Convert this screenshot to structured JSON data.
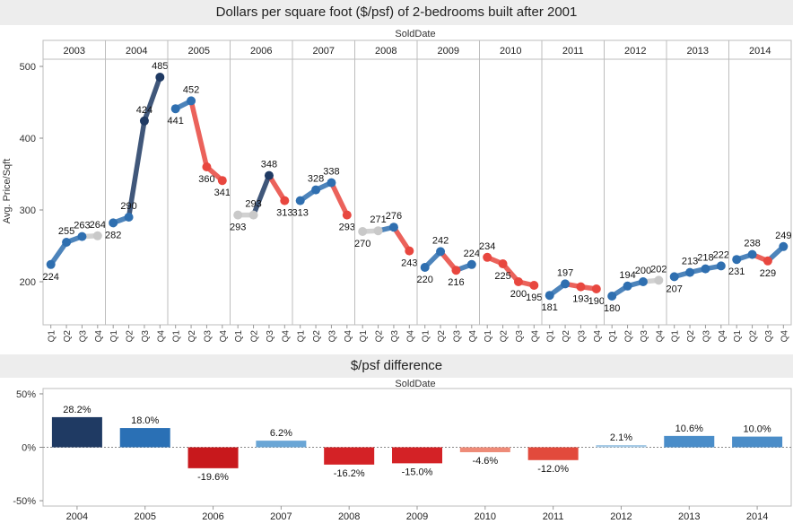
{
  "chart_data": [
    {
      "type": "line",
      "title": "Dollars per square foot ($/psf) of 2-bedrooms built after 2001",
      "column_header": "SoldDate",
      "ylabel": "Avg. Price/Sqft",
      "ylim": [
        140,
        510
      ],
      "yticks": [
        200,
        300,
        400,
        500
      ],
      "years": [
        "2003",
        "2004",
        "2005",
        "2006",
        "2007",
        "2008",
        "2009",
        "2010",
        "2011",
        "2012",
        "2013",
        "2014"
      ],
      "quarters": [
        "Q1",
        "Q2",
        "Q3",
        "Q4"
      ],
      "series": [
        {
          "year": "2003",
          "values": [
            224,
            255,
            263,
            264
          ]
        },
        {
          "year": "2004",
          "values": [
            282,
            290,
            424,
            485
          ]
        },
        {
          "year": "2005",
          "values": [
            441,
            452,
            360,
            341
          ]
        },
        {
          "year": "2006",
          "values": [
            293,
            293,
            348,
            313
          ]
        },
        {
          "year": "2007",
          "values": [
            313,
            328,
            338,
            293
          ]
        },
        {
          "year": "2008",
          "values": [
            270,
            271,
            276,
            243
          ]
        },
        {
          "year": "2009",
          "values": [
            220,
            242,
            216,
            224
          ]
        },
        {
          "year": "2010",
          "values": [
            234,
            225,
            200,
            195
          ]
        },
        {
          "year": "2011",
          "values": [
            181,
            197,
            193,
            190
          ]
        },
        {
          "year": "2012",
          "values": [
            180,
            194,
            200,
            202
          ]
        },
        {
          "year": "2013",
          "values": [
            207,
            213,
            218,
            222
          ]
        },
        {
          "year": "2014",
          "values": [
            231,
            238,
            229,
            249
          ]
        }
      ],
      "colors": {
        "increase": "#2f6fb0",
        "decrease": "#e8473f",
        "neutral": "#c9c9c9",
        "dark": "#1f3a63"
      }
    },
    {
      "type": "bar",
      "title": "$/psf difference",
      "column_header": "SoldDate",
      "categories": [
        "2004",
        "2005",
        "2006",
        "2007",
        "2008",
        "2009",
        "2010",
        "2011",
        "2012",
        "2013",
        "2014"
      ],
      "values": [
        28.2,
        18.0,
        -19.6,
        6.2,
        -16.2,
        -15.0,
        -4.6,
        -12.0,
        2.1,
        10.6,
        10.0
      ],
      "value_labels": [
        "28.2%",
        "18.0%",
        "-19.6%",
        "6.2%",
        "-16.2%",
        "-15.0%",
        "-4.6%",
        "-12.0%",
        "2.1%",
        "10.6%",
        "10.0%"
      ],
      "ylim": [
        -55,
        55
      ],
      "yticks": [
        50,
        0,
        -50
      ],
      "ytick_labels": [
        "50%",
        "0%",
        "-50%"
      ],
      "bar_colors": [
        "#1f3a63",
        "#2a70b5",
        "#c8181c",
        "#6aa6d6",
        "#d42226",
        "#d42226",
        "#ee8b78",
        "#e24a3c",
        "#a7cbe6",
        "#4a8dc9",
        "#4b8dc8"
      ]
    }
  ]
}
